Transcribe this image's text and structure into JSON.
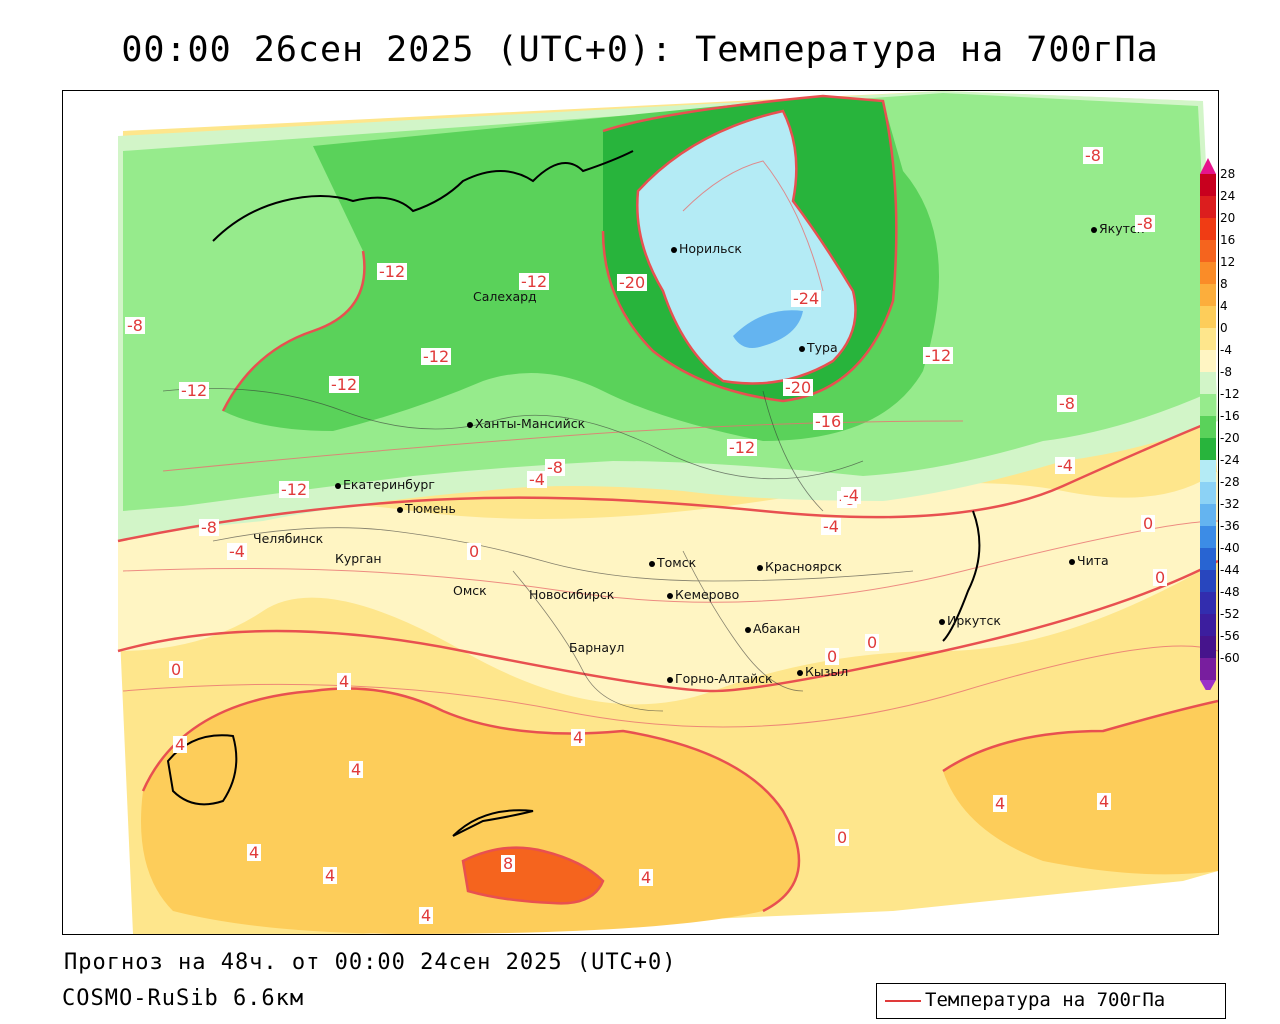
{
  "title": "00:00 26сен 2025 (UTC+0): Температура на 700гПа",
  "footer": {
    "forecast": "Прогноз на 48ч. от 00:00 24сен 2025 (UTC+0)",
    "model": "COSMO-RuSib 6.6км"
  },
  "legend": {
    "label": "Температура на 700гПа",
    "line_color": "#e03a3a"
  },
  "colorbar": {
    "ticks": [
      "28",
      "24",
      "20",
      "16",
      "12",
      "8",
      "4",
      "0",
      "-4",
      "-8",
      "-12",
      "-16",
      "-20",
      "-24",
      "-28",
      "-32",
      "-36",
      "-40",
      "-44",
      "-48",
      "-52",
      "-56",
      "-60"
    ],
    "colors": [
      "#c8001e",
      "#dc1e1e",
      "#f03c14",
      "#f5641e",
      "#fa8c28",
      "#fcae3c",
      "#fdcd5a",
      "#fee68c",
      "#fff5c3",
      "#d2f5c8",
      "#96eb8c",
      "#5ad25a",
      "#28b43c",
      "#b4ebf5",
      "#8cd2f5",
      "#64b4f0",
      "#3c8ce6",
      "#2864d2",
      "#2846be",
      "#322dae",
      "#3c1e9e",
      "#46148c",
      "#781e9e"
    ]
  },
  "cities": [
    {
      "name": "Норильск"
    },
    {
      "name": "Салехард"
    },
    {
      "name": "Тура"
    },
    {
      "name": "Якутск"
    },
    {
      "name": "Ханты-Мансийск"
    },
    {
      "name": "Екатеринбург"
    },
    {
      "name": "Тюмень"
    },
    {
      "name": "Челябинск"
    },
    {
      "name": "Курган"
    },
    {
      "name": "Омск"
    },
    {
      "name": "Новосибирск"
    },
    {
      "name": "Томск"
    },
    {
      "name": "Красноярск"
    },
    {
      "name": "Кемерово"
    },
    {
      "name": "Абакан"
    },
    {
      "name": "Барнаул"
    },
    {
      "name": "Горно-Алтайск"
    },
    {
      "name": "Кызыл"
    },
    {
      "name": "Иркутск"
    },
    {
      "name": "Чита"
    }
  ],
  "contour_labels": [
    "-12",
    "-12",
    "-20",
    "-24",
    "-12",
    "-12",
    "-12",
    "-20",
    "-16",
    "-12",
    "-8",
    "-8",
    "-8",
    "-12",
    "-8",
    "-4",
    "-8",
    "-4",
    "-4",
    "-8",
    "-12",
    "-8",
    "-4",
    "0",
    "0",
    "0",
    "0",
    "0",
    "0",
    "4",
    "4",
    "4",
    "4",
    "4",
    "8",
    "4",
    "4",
    "0",
    "4",
    "4",
    "4",
    "-4"
  ]
}
